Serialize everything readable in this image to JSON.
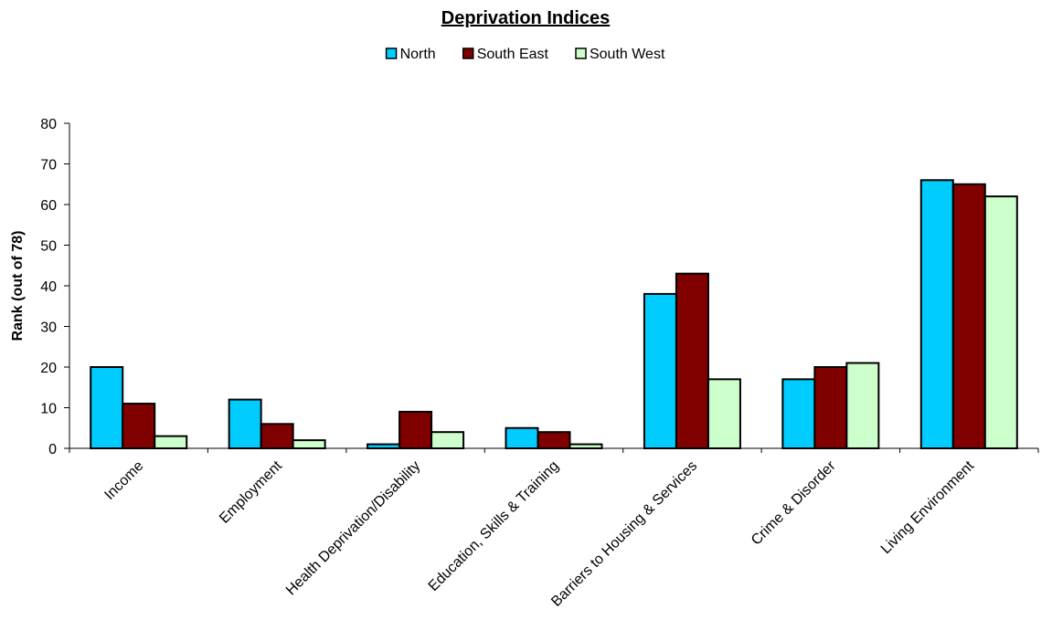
{
  "chart_data": {
    "type": "bar",
    "title": "Deprivation Indices",
    "xlabel": "",
    "ylabel": "Rank (out of 78)",
    "ylim": [
      0,
      80
    ],
    "yticks": [
      0,
      10,
      20,
      30,
      40,
      50,
      60,
      70,
      80
    ],
    "grid": false,
    "legend_position": "top-center",
    "categories": [
      "Income",
      "Employment",
      "Health Deprivation/Disability",
      "Education, Skills & Training",
      "Barriers to Housing & Services",
      "Crime & Disorder",
      "Living Environment"
    ],
    "series": [
      {
        "name": "North",
        "color": "#00CCFF",
        "values": [
          20,
          12,
          1,
          5,
          38,
          17,
          66
        ]
      },
      {
        "name": "South East",
        "color": "#800000",
        "values": [
          11,
          6,
          9,
          4,
          43,
          20,
          65
        ]
      },
      {
        "name": "South West",
        "color": "#CCFFCC",
        "values": [
          3,
          2,
          4,
          1,
          17,
          21,
          62
        ]
      }
    ]
  }
}
